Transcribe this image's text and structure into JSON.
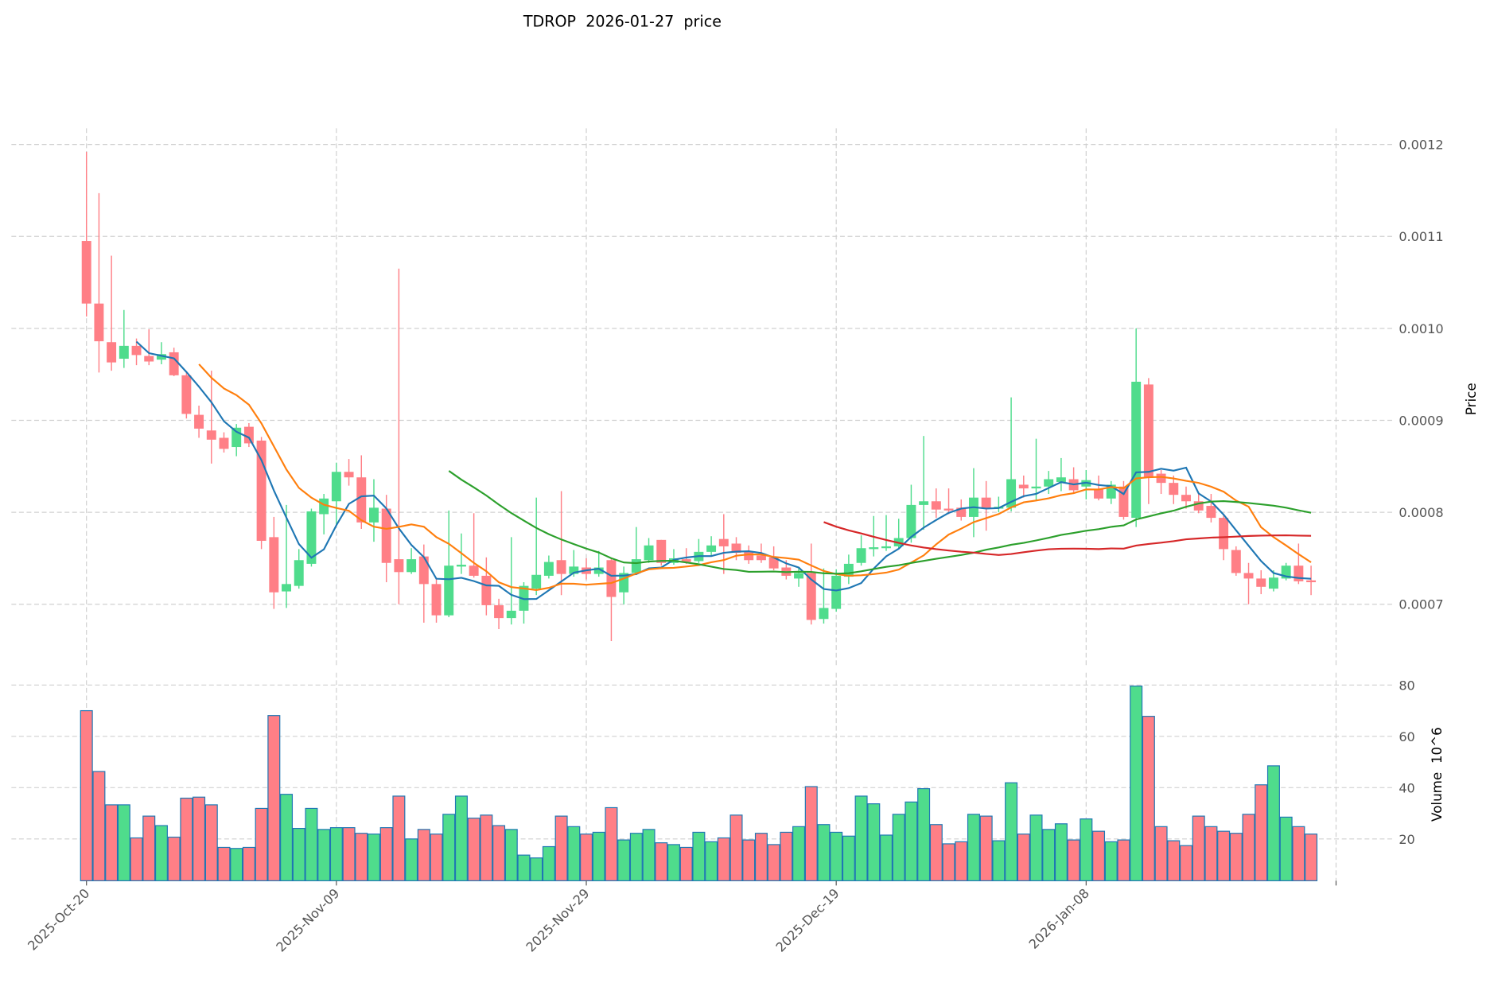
{
  "chart_data": {
    "type": "candlestick",
    "title": "TDROP  2026-01-27  price",
    "ylabel": "Price",
    "volume_ylabel": "Volume  10^6",
    "price_unit": 0.0001,
    "ylim": [
      0.000634,
      0.001218
    ],
    "volume_ylim": [
      3.7,
      84.8
    ],
    "price_ticks": [
      {
        "value": 7,
        "label": "0.0007"
      },
      {
        "value": 8,
        "label": "0.0008"
      },
      {
        "value": 9,
        "label": "0.0009"
      },
      {
        "value": 10,
        "label": "0.0010"
      },
      {
        "value": 11,
        "label": "0.0011"
      },
      {
        "value": 12,
        "label": "0.0012"
      }
    ],
    "volume_ticks": [
      {
        "value": 20,
        "label": "20"
      },
      {
        "value": 40,
        "label": "40"
      },
      {
        "value": 60,
        "label": "60"
      },
      {
        "value": 80,
        "label": "80"
      }
    ],
    "x_ticks": [
      {
        "index": 0,
        "label": "2025-Oct-20"
      },
      {
        "index": 20,
        "label": "2025-Nov-09"
      },
      {
        "index": 40,
        "label": "2025-Nov-29"
      },
      {
        "index": 60,
        "label": "2025-Dec-19"
      },
      {
        "index": 80,
        "label": "2026-Jan-08"
      },
      {
        "index": 100,
        "label": ""
      }
    ],
    "grid": true,
    "moving_averages": [
      {
        "period": 5,
        "color": "#1f77b4"
      },
      {
        "period": 10,
        "color": "#ff7f0e"
      },
      {
        "period": 30,
        "color": "#2ca02c"
      },
      {
        "period": 60,
        "color": "#d62728"
      }
    ],
    "colors": {
      "up": "#4fdc8c",
      "down": "#ff7f86",
      "volume_edge": "#1f77b4"
    },
    "open": [
      10.95,
      10.27,
      9.85,
      9.67,
      9.81,
      9.7,
      9.66,
      9.74,
      9.49,
      9.06,
      8.89,
      8.81,
      8.71,
      8.93,
      8.78,
      7.73,
      7.14,
      7.2,
      7.44,
      7.98,
      8.12,
      8.44,
      8.38,
      7.89,
      8.04,
      7.49,
      7.35,
      7.52,
      7.22,
      6.88,
      7.41,
      7.42,
      7.31,
      6.99,
      6.85,
      6.93,
      7.17,
      7.31,
      7.48,
      7.33,
      7.4,
      7.33,
      7.48,
      7.13,
      7.34,
      7.48,
      7.7,
      7.45,
      7.49,
      7.47,
      7.57,
      7.71,
      7.66,
      7.57,
      7.53,
      7.51,
      7.4,
      7.28,
      7.34,
      6.84,
      6.95,
      7.3,
      7.45,
      7.6,
      7.61,
      7.63,
      7.72,
      8.08,
      8.12,
      8.04,
      8.05,
      7.95,
      8.16,
      8.04,
      8.05,
      8.3,
      8.26,
      8.28,
      8.33,
      8.36,
      8.28,
      8.25,
      8.15,
      8.28,
      7.94,
      9.39,
      8.42,
      8.32,
      8.19,
      8.12,
      8.07,
      7.94,
      7.59,
      7.34,
      7.28,
      7.17,
      7.28,
      7.42,
      7.26
    ],
    "high": [
      11.92,
      11.47,
      10.79,
      10.2,
      9.89,
      9.99,
      9.85,
      9.79,
      9.52,
      9.16,
      9.54,
      8.87,
      8.96,
      8.97,
      8.82,
      7.95,
      8.08,
      7.6,
      8.04,
      8.2,
      8.54,
      8.58,
      8.62,
      8.36,
      8.19,
      10.65,
      7.61,
      7.65,
      7.29,
      8.02,
      7.77,
      7.99,
      7.51,
      7.06,
      7.73,
      7.24,
      8.16,
      7.53,
      8.23,
      7.59,
      7.5,
      7.58,
      7.5,
      7.41,
      7.84,
      7.72,
      7.7,
      7.6,
      7.61,
      7.71,
      7.74,
      7.98,
      7.73,
      7.64,
      7.66,
      7.63,
      7.48,
      7.4,
      7.66,
      7.39,
      7.38,
      7.54,
      7.75,
      7.96,
      7.97,
      7.93,
      8.3,
      8.83,
      8.26,
      8.26,
      8.14,
      8.48,
      8.34,
      8.17,
      9.25,
      8.4,
      8.8,
      8.45,
      8.59,
      8.49,
      8.46,
      8.4,
      8.34,
      8.34,
      10.0,
      9.46,
      8.46,
      8.4,
      8.28,
      8.22,
      8.2,
      7.97,
      7.63,
      7.45,
      7.37,
      7.37,
      7.45,
      7.66,
      7.42
    ],
    "low": [
      10.13,
      9.52,
      9.54,
      9.57,
      9.6,
      9.6,
      9.61,
      9.48,
      9.02,
      8.81,
      8.53,
      8.65,
      8.61,
      8.71,
      7.6,
      6.95,
      6.96,
      7.17,
      7.41,
      7.76,
      7.86,
      8.29,
      7.82,
      7.68,
      7.24,
      7.0,
      7.33,
      6.8,
      6.8,
      6.86,
      7.33,
      7.29,
      6.88,
      6.73,
      6.78,
      6.79,
      7.1,
      7.28,
      7.1,
      7.3,
      7.27,
      7.3,
      6.6,
      7.0,
      7.32,
      7.45,
      7.42,
      7.43,
      7.44,
      7.45,
      7.53,
      7.33,
      7.48,
      7.44,
      7.45,
      7.37,
      7.27,
      7.19,
      6.78,
      6.79,
      6.92,
      7.22,
      7.42,
      7.52,
      7.58,
      7.61,
      7.67,
      7.81,
      7.94,
      7.98,
      7.91,
      7.73,
      7.8,
      8.0,
      8.01,
      8.16,
      8.13,
      8.2,
      8.23,
      8.21,
      8.14,
      8.13,
      8.09,
      7.92,
      7.84,
      8.09,
      8.2,
      8.09,
      8.04,
      7.99,
      7.89,
      7.48,
      7.31,
      7.0,
      7.11,
      7.14,
      7.26,
      7.22,
      7.1
    ],
    "close": [
      10.27,
      9.86,
      9.63,
      9.81,
      9.71,
      9.64,
      9.72,
      9.49,
      9.07,
      8.91,
      8.79,
      8.69,
      8.92,
      8.75,
      7.69,
      7.13,
      7.22,
      7.48,
      8.01,
      8.15,
      8.44,
      8.38,
      7.89,
      8.05,
      7.45,
      7.35,
      7.49,
      7.22,
      6.88,
      7.42,
      7.43,
      7.31,
      6.99,
      6.85,
      6.93,
      7.2,
      7.32,
      7.46,
      7.33,
      7.41,
      7.33,
      7.4,
      7.08,
      7.34,
      7.49,
      7.64,
      7.45,
      7.5,
      7.46,
      7.57,
      7.64,
      7.63,
      7.56,
      7.48,
      7.48,
      7.39,
      7.31,
      7.34,
      6.83,
      6.96,
      7.31,
      7.44,
      7.61,
      7.62,
      7.63,
      7.72,
      8.08,
      8.12,
      8.03,
      8.02,
      7.95,
      8.16,
      8.04,
      8.06,
      8.36,
      8.26,
      8.28,
      8.36,
      8.38,
      8.24,
      8.35,
      8.15,
      8.3,
      7.95,
      9.42,
      8.38,
      8.32,
      8.19,
      8.12,
      8.02,
      7.94,
      7.6,
      7.34,
      7.28,
      7.19,
      7.29,
      7.42,
      7.25,
      7.24
    ],
    "volume": [
      70.0,
      46.3,
      33.3,
      33.3,
      20.4,
      28.9,
      25.2,
      20.7,
      35.9,
      36.3,
      33.3,
      16.7,
      16.3,
      16.7,
      31.9,
      68.1,
      37.4,
      24.1,
      31.9,
      23.7,
      24.4,
      24.4,
      22.2,
      21.9,
      24.4,
      36.7,
      20.0,
      23.7,
      21.9,
      29.6,
      36.7,
      28.1,
      29.3,
      25.2,
      23.7,
      13.7,
      12.6,
      17.0,
      28.9,
      24.8,
      21.9,
      22.6,
      32.2,
      19.6,
      22.2,
      23.7,
      18.5,
      17.8,
      16.7,
      22.6,
      18.9,
      20.4,
      29.3,
      19.6,
      22.2,
      17.8,
      22.6,
      24.8,
      40.4,
      25.6,
      22.6,
      21.1,
      36.7,
      33.7,
      21.5,
      29.6,
      34.4,
      39.6,
      25.6,
      18.1,
      18.9,
      29.6,
      28.9,
      19.3,
      41.9,
      21.9,
      29.3,
      23.7,
      25.9,
      19.6,
      27.8,
      23.0,
      18.9,
      19.6,
      79.6,
      67.8,
      24.8,
      19.3,
      17.4,
      28.9,
      24.8,
      23.0,
      22.2,
      29.6,
      41.1,
      48.5,
      28.5,
      24.8,
      21.9
    ]
  }
}
